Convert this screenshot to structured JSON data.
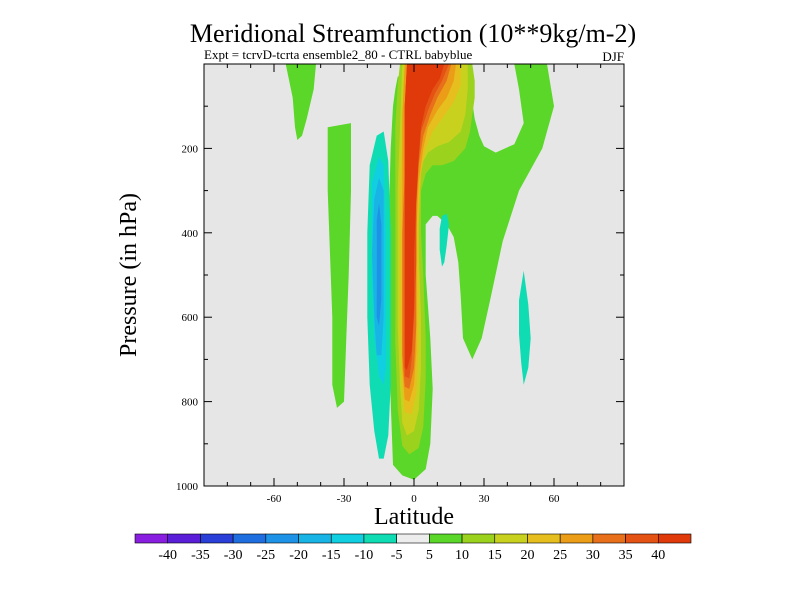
{
  "chart_data": {
    "type": "contour",
    "title": "Meridional Streamfunction (10**9kg/m-2)",
    "subtitle": "Expt = tcrvD-tcrta ensemble2_80 - CTRL babyblue",
    "season": "DJF",
    "xlabel": "Latitude",
    "ylabel": "Pressure (in hPa)",
    "xlim": [
      -90,
      90
    ],
    "ylim": [
      0,
      1000
    ],
    "y_inverted": true,
    "x_ticks": [
      -60,
      -30,
      0,
      30,
      60
    ],
    "x_tick_labels": [
      "-60",
      "-30",
      "0",
      "30",
      "60"
    ],
    "y_ticks": [
      200,
      400,
      600,
      800,
      1000
    ],
    "y_tick_labels": [
      "200",
      "400",
      "600",
      "800",
      "1000"
    ],
    "background_color": "#e6e6e6",
    "colorbar": {
      "labels": [
        "-40",
        "-35",
        "-30",
        "-25",
        "-20",
        "-15",
        "-10",
        "-5",
        "5",
        "10",
        "15",
        "20",
        "25",
        "30",
        "35",
        "40"
      ],
      "colors": [
        "#8a1ee0",
        "#5a1ed8",
        "#2a3ed8",
        "#1f6ee0",
        "#1e92e6",
        "#18b4e6",
        "#10cfe0",
        "#10dcb4",
        "#ededed",
        "#5ad728",
        "#9ad21e",
        "#c8d21e",
        "#e6be1e",
        "#eb9d18",
        "#e8701a",
        "#e45314",
        "#e03a0a"
      ]
    },
    "regions": [
      {
        "name": "positive-jet-5",
        "level": 5,
        "color": "#5ad728",
        "pts": [
          [
            7,
            0
          ],
          [
            18,
            0
          ],
          [
            20,
            20
          ],
          [
            21,
            40
          ],
          [
            23,
            60
          ],
          [
            25,
            90
          ],
          [
            26,
            130
          ],
          [
            28,
            170
          ],
          [
            30,
            195
          ],
          [
            35,
            210
          ],
          [
            43,
            190
          ],
          [
            47,
            140
          ],
          [
            45,
            60
          ],
          [
            43,
            0
          ],
          [
            57,
            0
          ],
          [
            60,
            100
          ],
          [
            55,
            200
          ],
          [
            45,
            300
          ],
          [
            38,
            420
          ],
          [
            33,
            550
          ],
          [
            29,
            650
          ],
          [
            25,
            700
          ],
          [
            21,
            650
          ],
          [
            20,
            550
          ],
          [
            19,
            470
          ],
          [
            17,
            410
          ],
          [
            14,
            380
          ],
          [
            10,
            360
          ],
          [
            8,
            360
          ],
          [
            5,
            380
          ],
          [
            5,
            500
          ],
          [
            7,
            650
          ],
          [
            8,
            770
          ],
          [
            7,
            900
          ],
          [
            5,
            960
          ],
          [
            0,
            985
          ],
          [
            -5,
            975
          ],
          [
            -9,
            950
          ],
          [
            -10,
            800
          ],
          [
            -11,
            600
          ],
          [
            -11,
            400
          ],
          [
            -10,
            200
          ],
          [
            -9,
            100
          ],
          [
            -8,
            60
          ],
          [
            -7,
            30
          ]
        ]
      },
      {
        "name": "positive-jet-10",
        "level": 10,
        "color": "#9ad21e",
        "pts": [
          [
            -6,
            0
          ],
          [
            25,
            0
          ],
          [
            26,
            40
          ],
          [
            26,
            80
          ],
          [
            25,
            120
          ],
          [
            24,
            160
          ],
          [
            22,
            200
          ],
          [
            17,
            230
          ],
          [
            12,
            240
          ],
          [
            8,
            240
          ],
          [
            5,
            260
          ],
          [
            3,
            300
          ],
          [
            3,
            400
          ],
          [
            4,
            500
          ],
          [
            5,
            650
          ],
          [
            5,
            750
          ],
          [
            4,
            860
          ],
          [
            2,
            910
          ],
          [
            -2,
            925
          ],
          [
            -5,
            905
          ],
          [
            -7,
            820
          ],
          [
            -8,
            660
          ],
          [
            -8,
            480
          ],
          [
            -8,
            320
          ],
          [
            -8,
            150
          ],
          [
            -7,
            50
          ]
        ]
      },
      {
        "name": "positive-jet-15",
        "level": 15,
        "color": "#c8d21e",
        "pts": [
          [
            -5,
            0
          ],
          [
            23,
            0
          ],
          [
            23,
            60
          ],
          [
            22,
            120
          ],
          [
            20,
            160
          ],
          [
            15,
            185
          ],
          [
            10,
            195
          ],
          [
            6,
            210
          ],
          [
            3,
            240
          ],
          [
            2,
            320
          ],
          [
            2,
            450
          ],
          [
            3,
            600
          ],
          [
            3,
            720
          ],
          [
            2,
            820
          ],
          [
            0,
            870
          ],
          [
            -3,
            880
          ],
          [
            -5,
            850
          ],
          [
            -6,
            760
          ],
          [
            -7,
            620
          ],
          [
            -7,
            450
          ],
          [
            -7,
            300
          ],
          [
            -6,
            150
          ]
        ]
      },
      {
        "name": "positive-jet-20",
        "level": 20,
        "color": "#e6be1e",
        "pts": [
          [
            -4,
            0
          ],
          [
            20,
            0
          ],
          [
            20,
            50
          ],
          [
            17,
            90
          ],
          [
            12,
            130
          ],
          [
            8,
            160
          ],
          [
            5,
            200
          ],
          [
            3,
            260
          ],
          [
            2,
            380
          ],
          [
            2,
            520
          ],
          [
            2,
            660
          ],
          [
            1,
            780
          ],
          [
            -1,
            830
          ],
          [
            -4,
            825
          ],
          [
            -5,
            760
          ],
          [
            -6,
            620
          ],
          [
            -6,
            450
          ],
          [
            -6,
            300
          ],
          [
            -5,
            150
          ]
        ]
      },
      {
        "name": "positive-jet-25",
        "level": 25,
        "color": "#eb9d18",
        "pts": [
          [
            -4,
            0
          ],
          [
            18,
            0
          ],
          [
            17,
            40
          ],
          [
            14,
            80
          ],
          [
            10,
            110
          ],
          [
            6,
            150
          ],
          [
            4,
            200
          ],
          [
            2,
            280
          ],
          [
            1,
            400
          ],
          [
            1,
            550
          ],
          [
            1,
            680
          ],
          [
            0,
            760
          ],
          [
            -2,
            800
          ],
          [
            -4,
            795
          ],
          [
            -5,
            720
          ],
          [
            -5,
            580
          ],
          [
            -5,
            420
          ],
          [
            -5,
            280
          ],
          [
            -5,
            120
          ]
        ]
      },
      {
        "name": "positive-jet-30",
        "level": 30,
        "color": "#e8701a",
        "pts": [
          [
            -3,
            0
          ],
          [
            16,
            0
          ],
          [
            14,
            40
          ],
          [
            10,
            80
          ],
          [
            7,
            120
          ],
          [
            4,
            170
          ],
          [
            2,
            240
          ],
          [
            1,
            340
          ],
          [
            1,
            480
          ],
          [
            1,
            620
          ],
          [
            0,
            720
          ],
          [
            -2,
            770
          ],
          [
            -4,
            765
          ],
          [
            -5,
            690
          ],
          [
            -5,
            560
          ],
          [
            -5,
            400
          ],
          [
            -4,
            260
          ],
          [
            -4,
            110
          ]
        ]
      },
      {
        "name": "positive-jet-35",
        "level": 35,
        "color": "#e45314",
        "pts": [
          [
            -3,
            0
          ],
          [
            15,
            0
          ],
          [
            12,
            40
          ],
          [
            9,
            70
          ],
          [
            6,
            110
          ],
          [
            3,
            160
          ],
          [
            2,
            230
          ],
          [
            1,
            330
          ],
          [
            1,
            470
          ],
          [
            0,
            600
          ],
          [
            -1,
            700
          ],
          [
            -2,
            745
          ],
          [
            -4,
            740
          ],
          [
            -4,
            660
          ],
          [
            -4,
            520
          ],
          [
            -4,
            380
          ],
          [
            -4,
            230
          ],
          [
            -4,
            100
          ]
        ]
      },
      {
        "name": "positive-jet-40",
        "level": 40,
        "color": "#e03a0a",
        "pts": [
          [
            -3,
            0
          ],
          [
            13,
            0
          ],
          [
            11,
            35
          ],
          [
            8,
            60
          ],
          [
            5,
            100
          ],
          [
            3,
            150
          ],
          [
            2,
            220
          ],
          [
            1,
            320
          ],
          [
            0,
            450
          ],
          [
            0,
            580
          ],
          [
            -1,
            680
          ],
          [
            -3,
            725
          ],
          [
            -4,
            720
          ],
          [
            -4,
            640
          ],
          [
            -4,
            500
          ],
          [
            -4,
            360
          ],
          [
            -4,
            220
          ],
          [
            -4,
            100
          ]
        ]
      },
      {
        "name": "positive-left-strip",
        "level": 5,
        "color": "#5ad728",
        "pts": [
          [
            -37,
            150
          ],
          [
            -27,
            140
          ],
          [
            -27,
            300
          ],
          [
            -28,
            500
          ],
          [
            -29,
            650
          ],
          [
            -30,
            800
          ],
          [
            -33,
            815
          ],
          [
            -35,
            760
          ],
          [
            -35,
            600
          ],
          [
            -36,
            450
          ],
          [
            -37,
            300
          ]
        ]
      },
      {
        "name": "positive-top-blob",
        "level": 5,
        "color": "#5ad728",
        "pts": [
          [
            -55,
            0
          ],
          [
            -42,
            0
          ],
          [
            -43,
            60
          ],
          [
            -46,
            130
          ],
          [
            -48,
            170
          ],
          [
            -50,
            180
          ],
          [
            -51,
            150
          ],
          [
            -52,
            80
          ]
        ]
      },
      {
        "name": "negative-cell-5",
        "level": -5,
        "color": "#10dcb4",
        "pts": [
          [
            -19,
            240
          ],
          [
            -16,
            170
          ],
          [
            -13,
            160
          ],
          [
            -11,
            230
          ],
          [
            -10,
            400
          ],
          [
            -10,
            600
          ],
          [
            -10,
            760
          ],
          [
            -11,
            880
          ],
          [
            -13,
            935
          ],
          [
            -15,
            935
          ],
          [
            -17,
            870
          ],
          [
            -19,
            760
          ],
          [
            -20,
            600
          ],
          [
            -20,
            400
          ]
        ]
      },
      {
        "name": "negative-cell-10",
        "level": -10,
        "color": "#10cfe0",
        "pts": [
          [
            -18,
            280
          ],
          [
            -15,
            220
          ],
          [
            -13,
            240
          ],
          [
            -12,
            400
          ],
          [
            -12,
            600
          ],
          [
            -12,
            720
          ],
          [
            -13,
            760
          ],
          [
            -15,
            740
          ],
          [
            -17,
            650
          ],
          [
            -18,
            500
          ]
        ]
      },
      {
        "name": "negative-cell-15",
        "level": -15,
        "color": "#18b4e6",
        "pts": [
          [
            -17,
            320
          ],
          [
            -15,
            270
          ],
          [
            -13,
            300
          ],
          [
            -13,
            450
          ],
          [
            -13,
            600
          ],
          [
            -14,
            690
          ],
          [
            -16,
            690
          ],
          [
            -17,
            600
          ],
          [
            -18,
            450
          ]
        ]
      },
      {
        "name": "negative-cell-20",
        "level": -20,
        "color": "#1e92e6",
        "pts": [
          [
            -16,
            370
          ],
          [
            -15,
            330
          ],
          [
            -14,
            380
          ],
          [
            -14,
            560
          ],
          [
            -15,
            620
          ],
          [
            -16,
            600
          ],
          [
            -16,
            470
          ]
        ]
      },
      {
        "name": "negative-small-right",
        "level": -5,
        "color": "#10dcb4",
        "pts": [
          [
            11,
            390
          ],
          [
            12,
            360
          ],
          [
            14,
            355
          ],
          [
            15,
            380
          ],
          [
            14,
            430
          ],
          [
            13,
            470
          ],
          [
            12,
            480
          ],
          [
            11,
            440
          ]
        ]
      },
      {
        "name": "negative-far-right",
        "level": -5,
        "color": "#10dcb4",
        "pts": [
          [
            45,
            560
          ],
          [
            47,
            490
          ],
          [
            49,
            570
          ],
          [
            50,
            650
          ],
          [
            49,
            720
          ],
          [
            47,
            760
          ],
          [
            46,
            710
          ],
          [
            45,
            640
          ]
        ]
      }
    ]
  }
}
